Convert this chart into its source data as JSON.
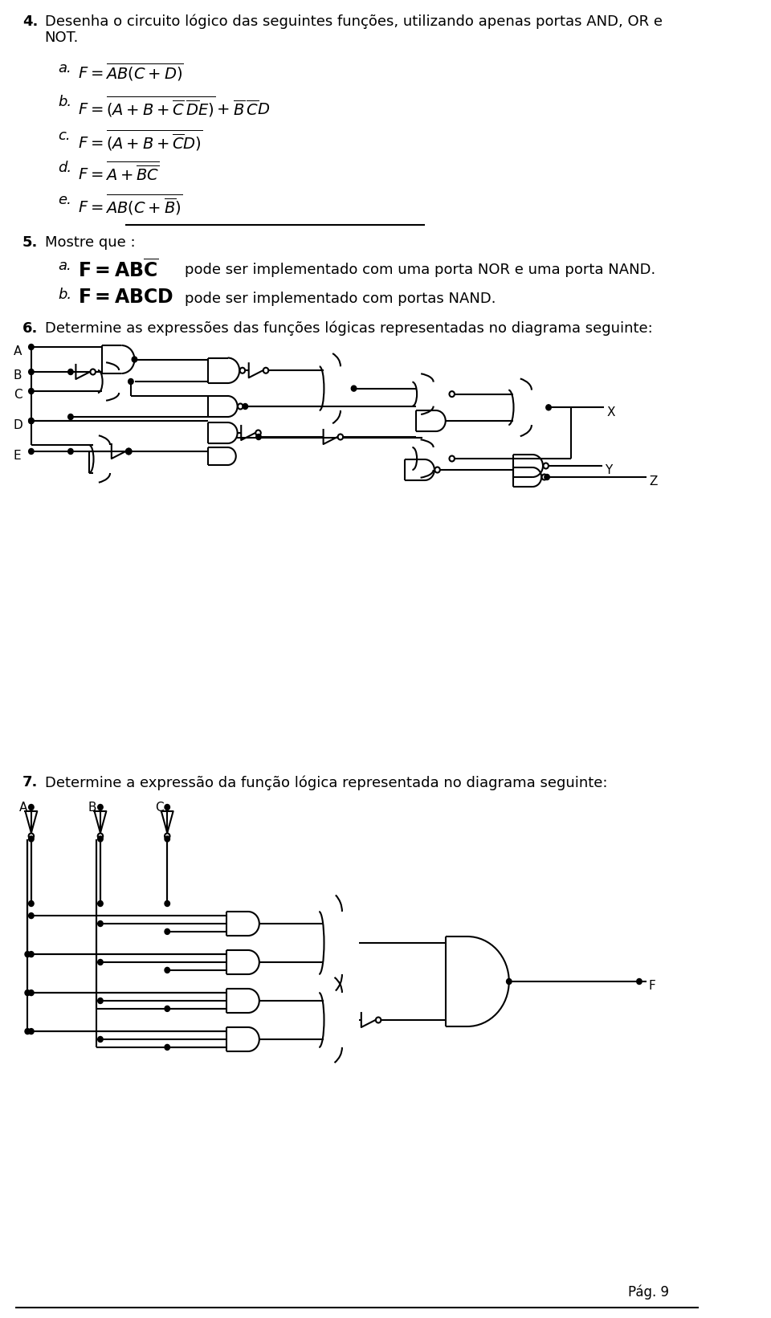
{
  "bg_color": "#ffffff",
  "text_color": "#000000",
  "page_number": "Pág. 9",
  "sec4_header": "Desenha o circuito lógico das seguintes funções, utilizando apenas portas AND, OR e",
  "sec4_header2": "NOT.",
  "sec5_header": "Mostre que :",
  "sec6_header": "Determine as expressões das funções lógicas representadas no diagrama seguinte:",
  "sec7_header": "Determine a expressão da função lógica representada no diagrama seguinte:",
  "item4a": "$F = \\overline{AB(C+D)}$",
  "item4b": "$F = \\overline{(A+B+\\overline{C}\\,\\overline{D}E)}+\\overline{B}\\,\\overline{C}D$",
  "item4c": "$F = \\overline{(A+B+\\overline{C}D)}$",
  "item4d": "$F = \\overline{A+\\overline{BC}}$",
  "item4e": "$F = \\overline{AB(C+\\overline{B})}$",
  "item5a_math": "$\\mathbf{F{=}AB\\overline{C}}$",
  "item5a_text": "pode ser implementado com uma porta NOR e uma porta NAND.",
  "item5b_math": "$\\mathbf{F{=}ABCD}$",
  "item5b_text": "pode ser implementado com portas NAND."
}
